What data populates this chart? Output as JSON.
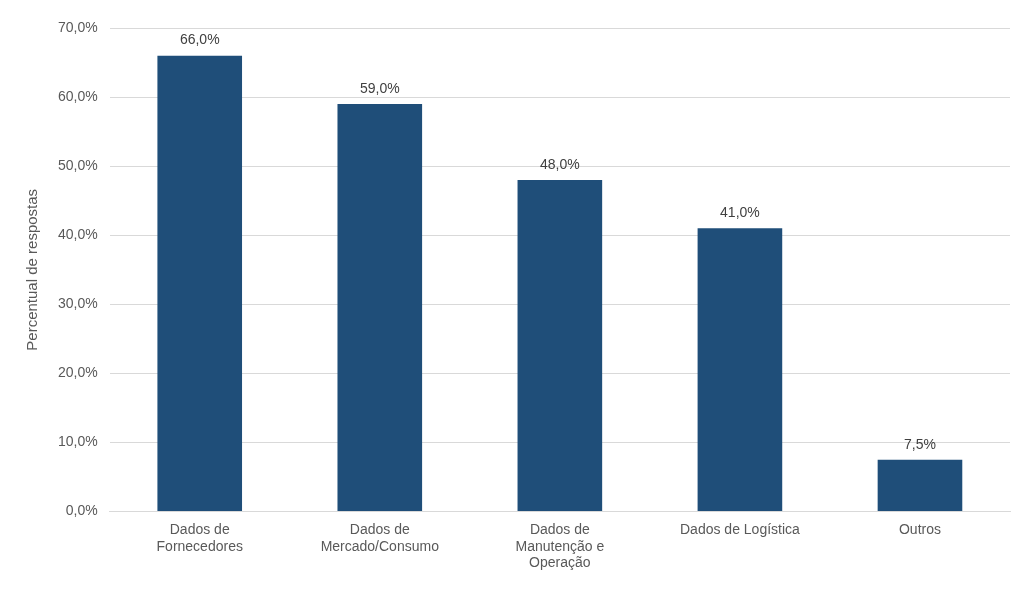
{
  "chart_data": {
    "type": "bar",
    "ylabel": "Percentual de respostas",
    "categories": [
      "Dados de Fornecedores",
      "Dados de Mercado/Consumo",
      "Dados de Manutenção e Operação",
      "Dados de Logística",
      "Outros"
    ],
    "values": [
      66.0,
      59.0,
      48.0,
      41.0,
      7.5
    ],
    "value_labels": [
      "66,0%",
      "59,0%",
      "48,0%",
      "41,0%",
      "7,5%"
    ],
    "color": "#1f4e79",
    "ylim": [
      0,
      70
    ],
    "yticks": [
      {
        "value": 0,
        "label": "0,0%"
      },
      {
        "value": 10,
        "label": "10,0%"
      },
      {
        "value": 20,
        "label": "20,0%"
      },
      {
        "value": 30,
        "label": "30,0%"
      },
      {
        "value": 40,
        "label": "40,0%"
      },
      {
        "value": 50,
        "label": "50,0%"
      },
      {
        "value": 60,
        "label": "60,0%"
      },
      {
        "value": 70,
        "label": "70,0%"
      }
    ],
    "grid": "y",
    "legend": false
  }
}
